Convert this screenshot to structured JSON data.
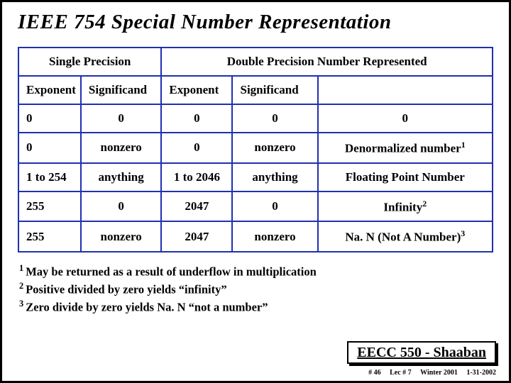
{
  "title": "IEEE 754 Special Number Representation",
  "table": {
    "group_headers": {
      "single": "Single Precision",
      "double": "Double Precision Number Represented"
    },
    "sub_headers": {
      "sp_exp": "Exponent",
      "sp_sig": "Significand",
      "dp_exp": "Exponent",
      "dp_sig": "Significand"
    },
    "rows": [
      {
        "sp_exp": "0",
        "sp_sig": "0",
        "dp_exp": "0",
        "dp_sig": "0",
        "rep": "0",
        "sup": ""
      },
      {
        "sp_exp": "0",
        "sp_sig": "nonzero",
        "dp_exp": "0",
        "dp_sig": "nonzero",
        "rep": "Denormalized number",
        "sup": "1"
      },
      {
        "sp_exp": "1 to 254",
        "sp_sig": "anything",
        "dp_exp": "1 to 2046",
        "dp_sig": "anything",
        "rep": "Floating Point Number",
        "sup": ""
      },
      {
        "sp_exp": "255",
        "sp_sig": "0",
        "dp_exp": "2047",
        "dp_sig": "0",
        "rep": "Infinity",
        "sup": "2"
      },
      {
        "sp_exp": "255",
        "sp_sig": "nonzero",
        "dp_exp": "2047",
        "dp_sig": "nonzero",
        "rep": "Na. N (Not A Number)",
        "sup": "3"
      }
    ]
  },
  "footnotes": [
    {
      "num": "1",
      "text": "May be returned as a result of underflow in multiplication"
    },
    {
      "num": "2",
      "text": "Positive divided by zero yields “infinity”"
    },
    {
      "num": "3",
      "text": "Zero divide by zero yields Na. N “not a number”"
    }
  ],
  "course": "EECC 550 - Shaaban",
  "meta": {
    "page": "# 46",
    "lecture": "Lec # 7",
    "term": "Winter 2001",
    "date": "1-31-2002"
  },
  "colors": {
    "table_border": "#2030b0",
    "text": "#000000",
    "background": "#ffffff"
  },
  "col_widths_pct": [
    13,
    17,
    15,
    18,
    37
  ]
}
